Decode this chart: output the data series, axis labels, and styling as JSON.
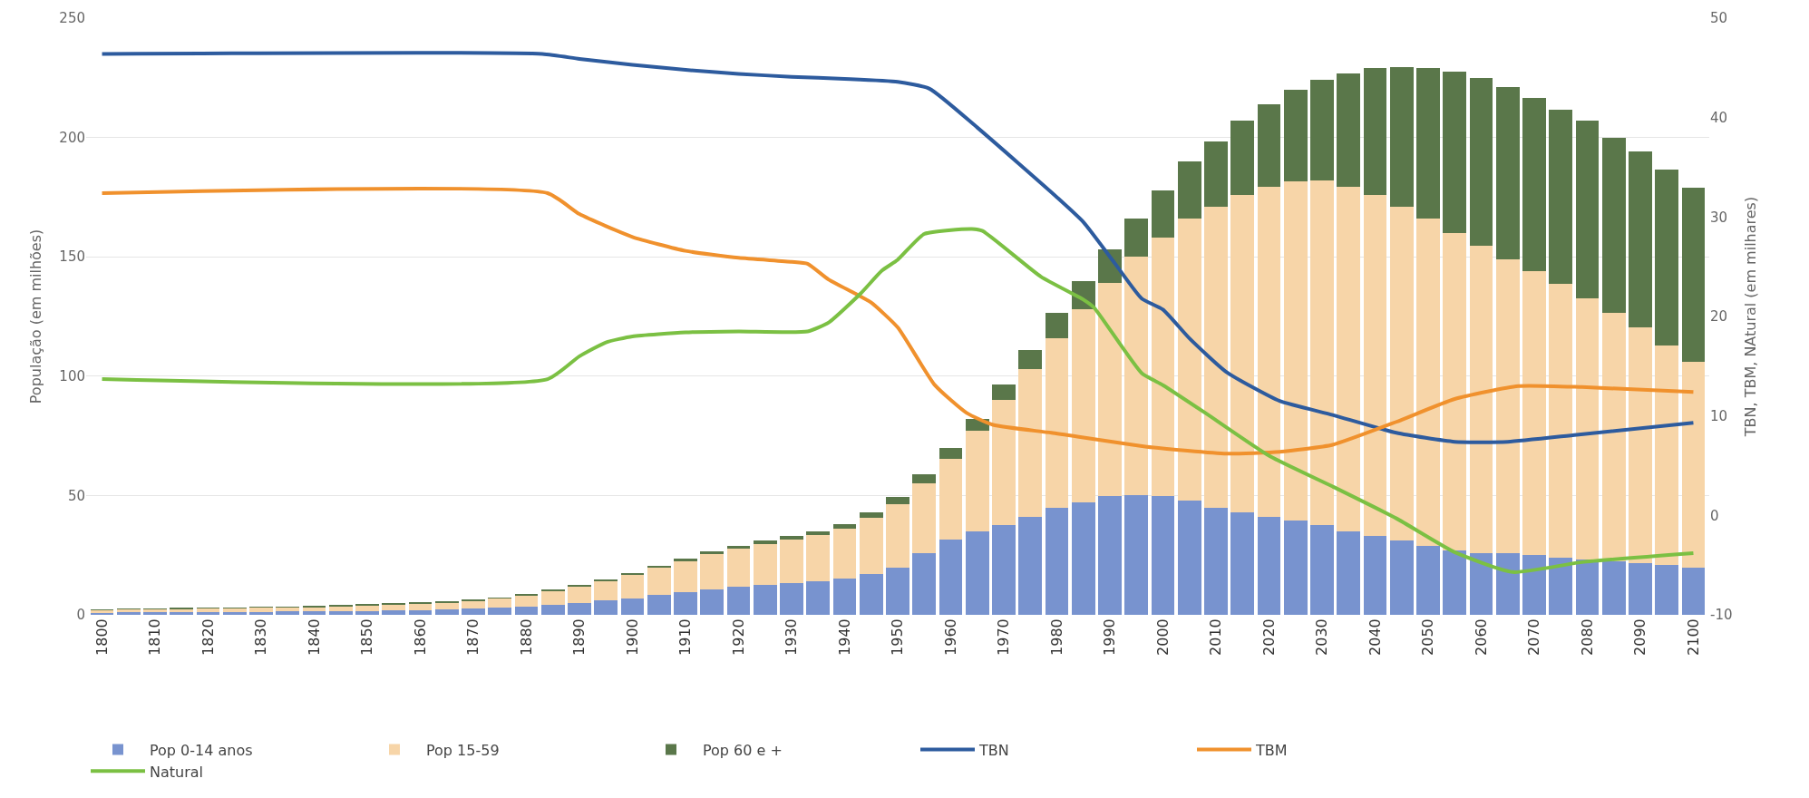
{
  "chart_data": {
    "type": "bar",
    "stacked": true,
    "ylabel": "População (em milhões)",
    "y2label": "TBN, TBM, NAtural (em milhares)",
    "x": [
      1800,
      1805,
      1810,
      1815,
      1820,
      1825,
      1830,
      1835,
      1840,
      1845,
      1850,
      1855,
      1860,
      1865,
      1870,
      1875,
      1880,
      1885,
      1890,
      1895,
      1900,
      1905,
      1910,
      1915,
      1920,
      1925,
      1930,
      1935,
      1940,
      1945,
      1950,
      1955,
      1960,
      1965,
      1970,
      1975,
      1980,
      1985,
      1990,
      1995,
      2000,
      2005,
      2010,
      2015,
      2020,
      2025,
      2030,
      2035,
      2040,
      2045,
      2050,
      2055,
      2060,
      2065,
      2070,
      2075,
      2080,
      2085,
      2090,
      2095,
      2100
    ],
    "xlim": [
      1797,
      2103
    ],
    "xticks": [
      1800,
      1810,
      1820,
      1830,
      1840,
      1850,
      1860,
      1870,
      1880,
      1890,
      1900,
      1910,
      1920,
      1930,
      1940,
      1950,
      1960,
      1970,
      1980,
      1990,
      2000,
      2010,
      2020,
      2030,
      2040,
      2050,
      2060,
      2070,
      2080,
      2090,
      2100
    ],
    "ylim": [
      0,
      250
    ],
    "yticks": [
      0,
      50,
      100,
      150,
      200,
      250
    ],
    "y2lim": [
      -10,
      50
    ],
    "y2ticks": [
      -10,
      0,
      10,
      20,
      30,
      40,
      50
    ],
    "grid": "y",
    "legend": "bottom",
    "series": [
      {
        "name": "Pop 0-14 anos",
        "color": "#7893cf",
        "values": [
          0.9,
          1.0,
          1.0,
          1.1,
          1.2,
          1.2,
          1.3,
          1.4,
          1.5,
          1.6,
          1.7,
          1.9,
          2.0,
          2.3,
          2.6,
          2.9,
          3.4,
          4.2,
          5.0,
          6.0,
          7.0,
          8.2,
          9.4,
          10.6,
          11.6,
          12.4,
          13.2,
          14.0,
          15.2,
          17.2,
          19.7,
          25.7,
          31.7,
          35,
          37.7,
          41,
          45,
          47,
          49.7,
          50,
          49.7,
          47.8,
          45,
          43,
          41,
          39.6,
          37.7,
          35,
          33,
          31,
          29,
          27,
          26,
          25.7,
          25,
          23.8,
          23.3,
          22.6,
          21.6,
          21,
          19.7
        ]
      },
      {
        "name": "Pop 15-59",
        "color": "#f7d5a8",
        "values": [
          1.2,
          1.3,
          1.4,
          1.5,
          1.6,
          1.7,
          1.8,
          1.8,
          1.9,
          2.1,
          2.3,
          2.5,
          2.8,
          3.0,
          3.4,
          4.0,
          4.8,
          5.9,
          7.0,
          8.4,
          9.8,
          11.5,
          13.1,
          14.8,
          16.1,
          17.2,
          18.3,
          19.4,
          21,
          23.6,
          26.8,
          29.3,
          33.8,
          42,
          52.3,
          62,
          71,
          81,
          89.3,
          100,
          108.3,
          118.2,
          126,
          133,
          138.5,
          142,
          144.3,
          144.5,
          143,
          140,
          137,
          133,
          128.5,
          123.3,
          119,
          114.7,
          109.2,
          103.9,
          98.9,
          92,
          86.3
        ]
      },
      {
        "name": "Pop 60 e +",
        "color": "#5a774a",
        "values": [
          0.1,
          0.1,
          0.1,
          0.1,
          0.1,
          0.1,
          0.1,
          0.2,
          0.2,
          0.2,
          0.2,
          0.2,
          0.2,
          0.3,
          0.3,
          0.3,
          0.3,
          0.4,
          0.5,
          0.6,
          0.7,
          0.8,
          1.0,
          1.1,
          1.3,
          1.4,
          1.5,
          1.6,
          1.8,
          2.2,
          3.0,
          4,
          4.5,
          5,
          6.5,
          8,
          10.5,
          12,
          14,
          16,
          20,
          24,
          27.5,
          31,
          34.5,
          38.4,
          42,
          47.5,
          53,
          58.6,
          63,
          67.6,
          70.5,
          72,
          72.5,
          73.1,
          74.5,
          73.5,
          73.5,
          73.5,
          73
        ]
      },
      {
        "name": "TBN",
        "type": "line",
        "axis": "y2",
        "color": "#2d5b9e",
        "x": [
          1800,
          1883,
          1890,
          1900,
          1910,
          1920,
          1930,
          1940,
          1950,
          1956,
          1965,
          1980,
          1985,
          1991,
          1996,
          2000,
          2005,
          2012,
          2022,
          2032,
          2044,
          2055,
          2065,
          2078,
          2100
        ],
        "values": [
          46.4,
          46.4,
          45.9,
          45.3,
          44.8,
          44.4,
          44.1,
          43.9,
          43.6,
          42.9,
          39,
          32,
          29.5,
          25.3,
          21.8,
          20.7,
          17.8,
          14.4,
          11.5,
          10.1,
          8.3,
          7.4,
          7.4,
          8.1,
          9.3
        ]
      },
      {
        "name": "TBM",
        "type": "line",
        "axis": "y2",
        "color": "#f0912d",
        "x": [
          1800,
          1884,
          1890,
          1900,
          1910,
          1920,
          1930,
          1933,
          1937,
          1942,
          1945,
          1950,
          1957,
          1963,
          1968,
          1979,
          1997,
          2012,
          2022,
          2032,
          2044,
          2055,
          2067,
          2079,
          2100
        ],
        "values": [
          32.4,
          32.4,
          30.3,
          28,
          26.6,
          25.9,
          25.5,
          25.3,
          23.7,
          22.3,
          21.4,
          18.9,
          13.1,
          10.3,
          9.1,
          8.3,
          6.9,
          6.2,
          6.4,
          7.1,
          9.4,
          11.7,
          13,
          12.9,
          12.4
        ]
      },
      {
        "name": "Natural",
        "type": "line",
        "axis": "y2",
        "color": "#7bc043",
        "x": [
          1800,
          1884,
          1890,
          1895,
          1900,
          1910,
          1920,
          1933,
          1937,
          1943,
          1947,
          1950,
          1955,
          1964,
          1966,
          1977,
          1985,
          1987,
          1996,
          2000,
          2008,
          2020,
          2032,
          2044,
          2055,
          2066,
          2079,
          2100
        ],
        "values": [
          13.7,
          13.7,
          16,
          17.4,
          18,
          18.4,
          18.5,
          18.5,
          19.4,
          22.3,
          24.6,
          25.7,
          28.3,
          28.8,
          28.6,
          24,
          21.7,
          20.9,
          14.3,
          13.1,
          10.3,
          6,
          2.9,
          -0.3,
          -3.7,
          -5.7,
          -4.7,
          -3.8
        ]
      }
    ]
  }
}
